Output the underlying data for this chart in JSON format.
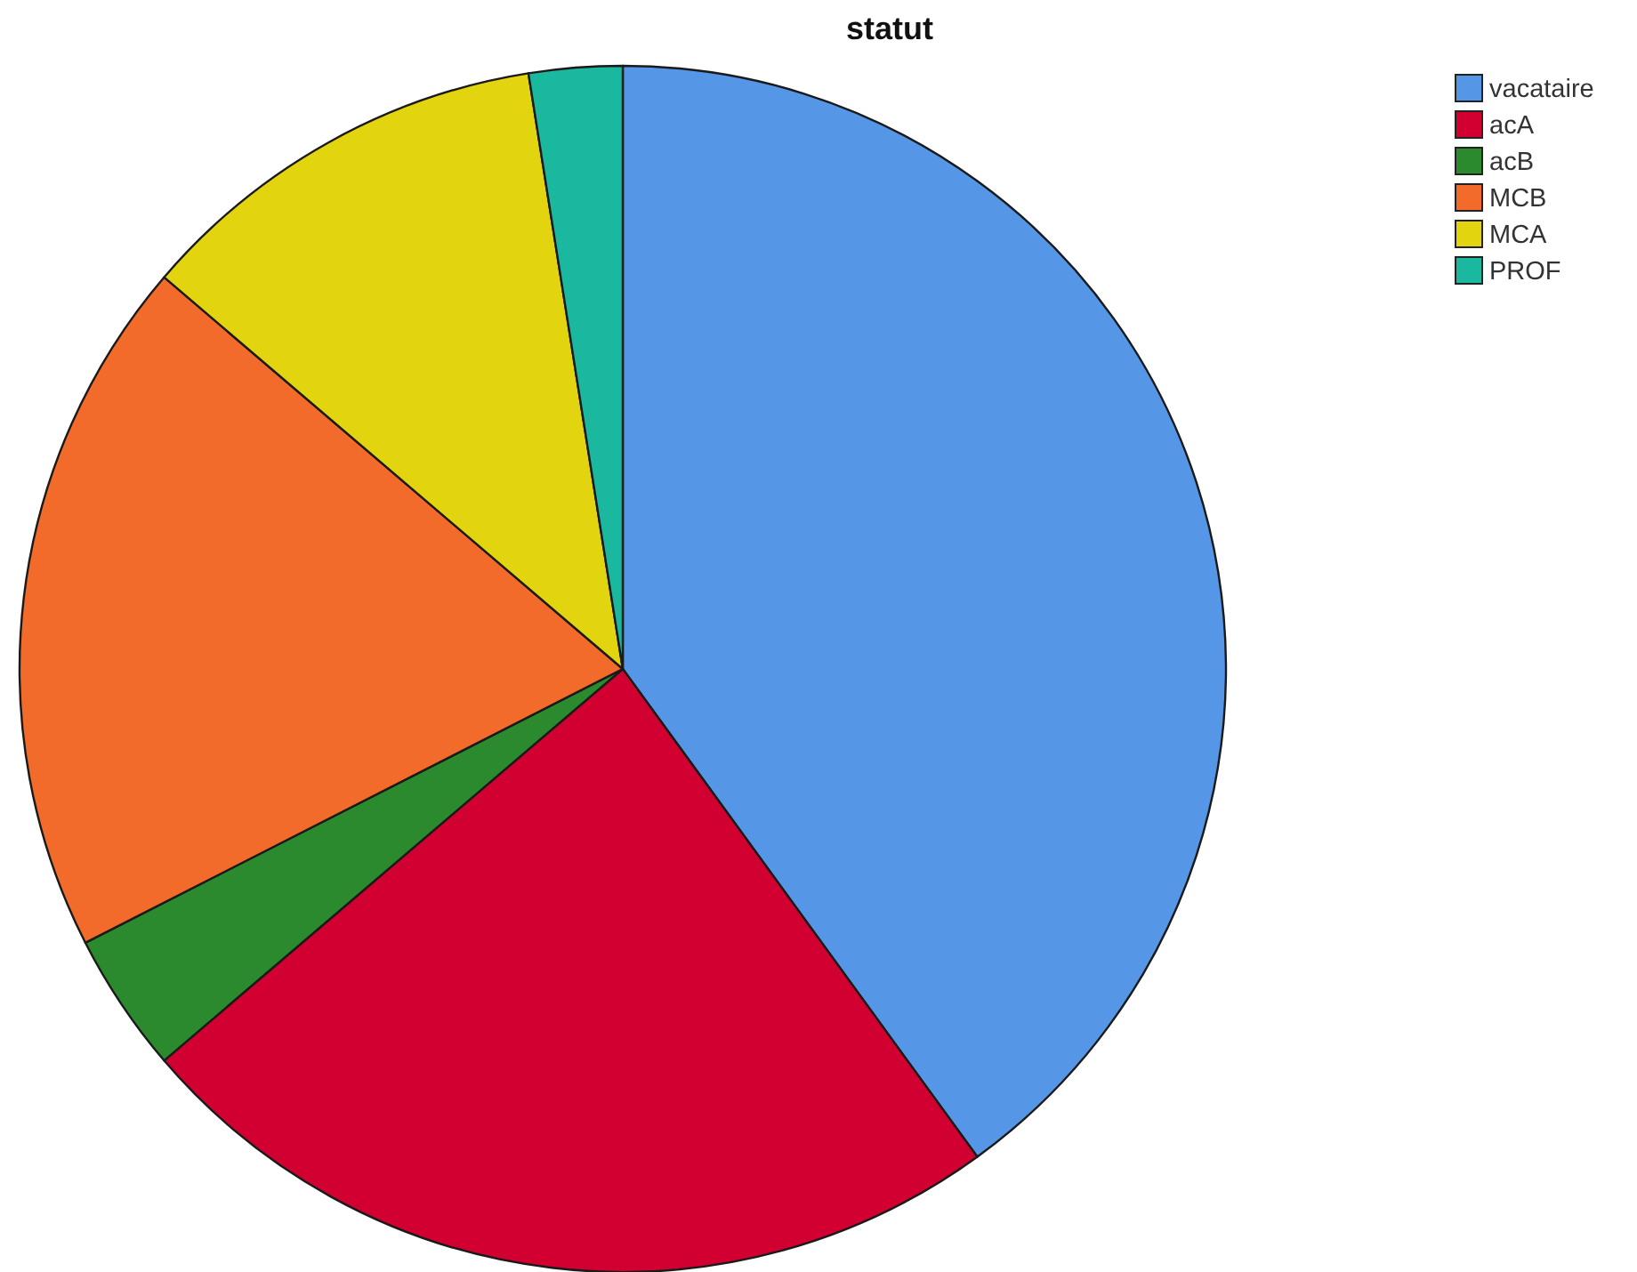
{
  "chart_data": {
    "type": "pie",
    "title": "statut",
    "categories": [
      "vacataire",
      "acA",
      "acB",
      "MCB",
      "MCA",
      "PROF"
    ],
    "values": [
      40,
      23.75,
      3.75,
      18.75,
      11.25,
      2.5
    ],
    "colors": [
      "#5596e6",
      "#d10031",
      "#2b8a2e",
      "#f26b2b",
      "#e2d50f",
      "#1bb8a0"
    ],
    "legend": "top right"
  }
}
